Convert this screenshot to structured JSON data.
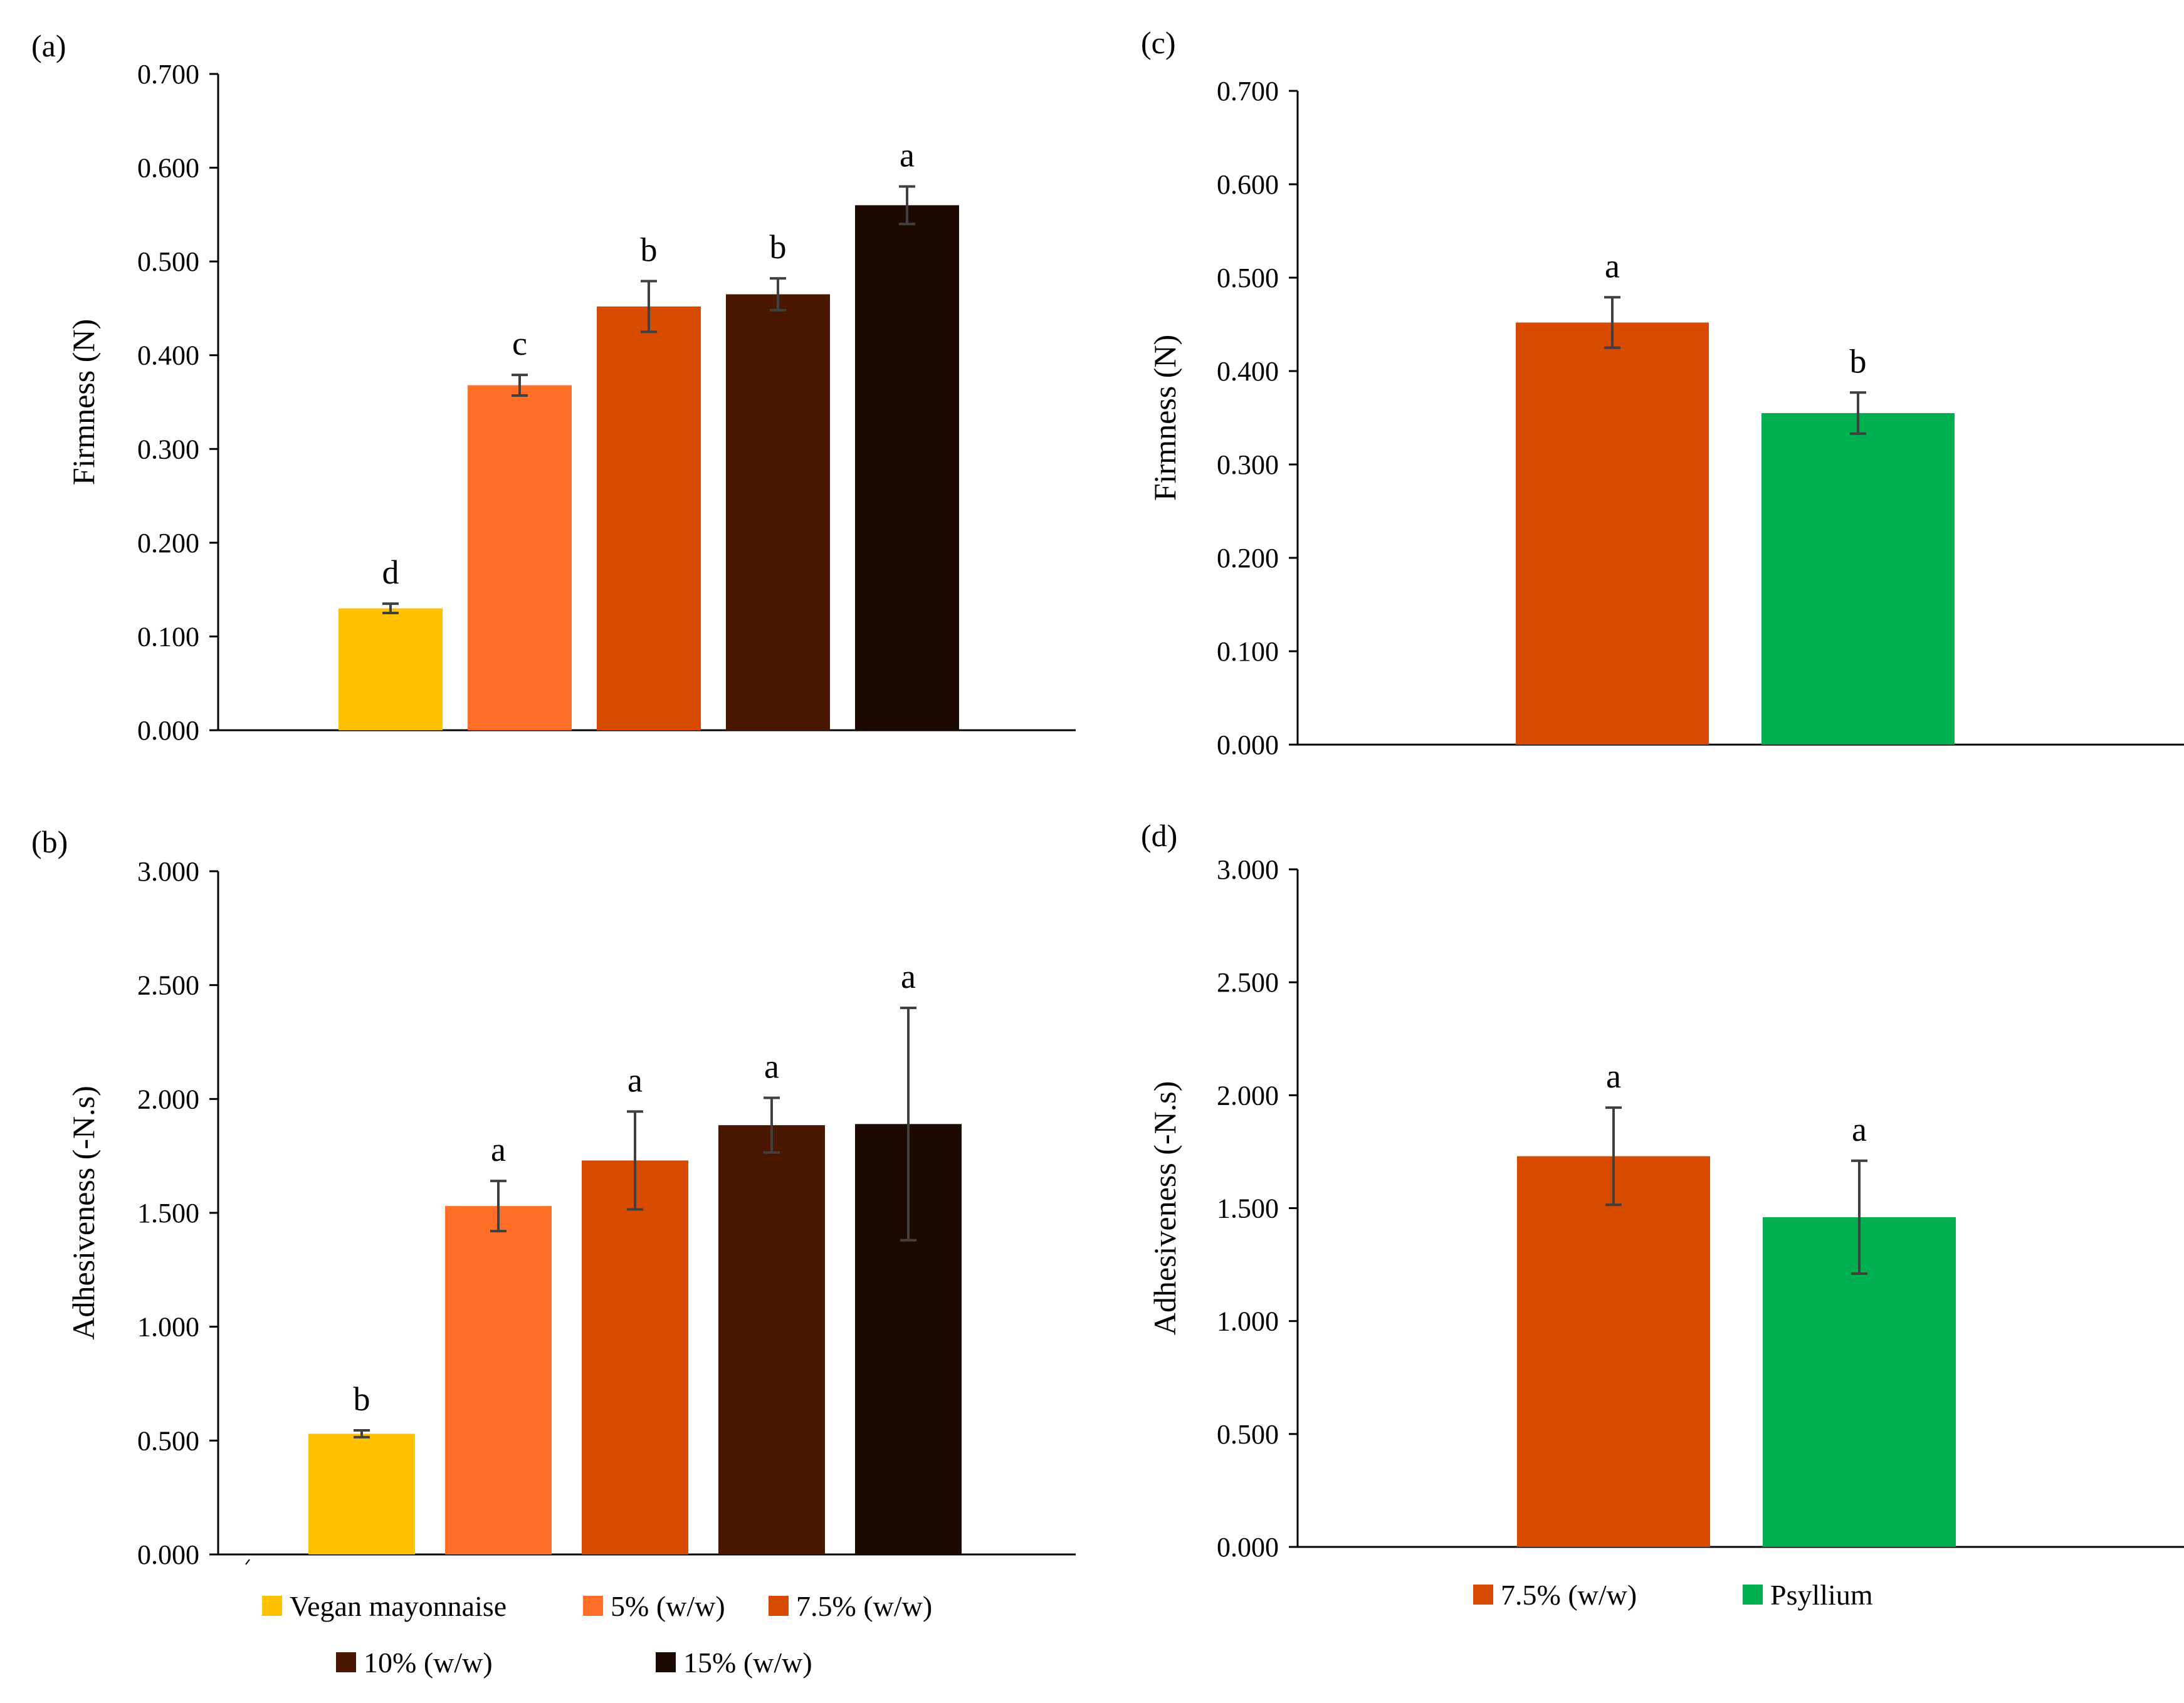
{
  "figure": {
    "legends": [
      {
        "name": "legend-left",
        "rows": [
          [
            {
              "label": "Vegan mayonnaise",
              "color": "#FFC000"
            },
            {
              "label": "5% (w/w)",
              "color": "#FF6F28"
            },
            {
              "label": "7.5% (w/w)",
              "color": "#D84A00"
            }
          ],
          [
            {
              "label": "10% (w/w)",
              "color": "#4A1700"
            },
            {
              "label": "15% (w/w)",
              "color": "#1C0A00"
            }
          ]
        ]
      },
      {
        "name": "legend-right",
        "rows": [
          [
            {
              "label": "7.5% (w/w)",
              "color": "#D84A00"
            },
            {
              "label": "Psyllium",
              "color": "#00B050"
            }
          ]
        ]
      }
    ]
  },
  "chart_data": [
    {
      "panel": "(a)",
      "type": "bar",
      "ylabel": "Firmness (N)",
      "xlabel": "",
      "ylim": [
        0,
        0.7
      ],
      "yticks": [
        "0.000",
        "0.100",
        "0.200",
        "0.300",
        "0.400",
        "0.500",
        "0.600",
        "0.700"
      ],
      "grid": false,
      "legend": "bottom",
      "categories": [
        "Vegan mayonnaise",
        "5% (w/w)",
        "7.5% (w/w)",
        "10% (w/w)",
        "15% (w/w)"
      ],
      "values": [
        0.13,
        0.368,
        0.452,
        0.465,
        0.56
      ],
      "errors": [
        0.005,
        0.011,
        0.027,
        0.017,
        0.02
      ],
      "labels": [
        "d",
        "c",
        "b",
        "b",
        "a"
      ],
      "colors": [
        "#FFC000",
        "#FF6F28",
        "#D84A00",
        "#4A1700",
        "#1C0A00"
      ]
    },
    {
      "panel": "(b)",
      "type": "bar",
      "ylabel": "Adhesiveness (-N.s)",
      "xlabel": "",
      "ylim": [
        0,
        3
      ],
      "yticks": [
        "0.000",
        "0.500",
        "1.000",
        "1.500",
        "2.000",
        "2.500",
        "3.000"
      ],
      "grid": false,
      "legend": "bottom",
      "categories": [
        "Vegan mayonnaise",
        "5% (w/w)",
        "7.5% (w/w)",
        "10% (w/w)",
        "15% (w/w)"
      ],
      "values": [
        0.53,
        1.53,
        1.73,
        1.885,
        1.89
      ],
      "errors": [
        0.015,
        0.11,
        0.215,
        0.12,
        0.51
      ],
      "labels": [
        "b",
        "a",
        "a",
        "a",
        "a"
      ],
      "colors": [
        "#FFC000",
        "#FF6F28",
        "#D84A00",
        "#4A1700",
        "#1C0A00"
      ]
    },
    {
      "panel": "(c)",
      "type": "bar",
      "ylabel": "Firmness (N)",
      "xlabel": "",
      "ylim": [
        0,
        0.7
      ],
      "yticks": [
        "0.000",
        "0.100",
        "0.200",
        "0.300",
        "0.400",
        "0.500",
        "0.600",
        "0.700"
      ],
      "grid": false,
      "legend": "bottom",
      "categories": [
        "7.5% (w/w)",
        "Psyllium"
      ],
      "values": [
        0.452,
        0.355
      ],
      "errors": [
        0.027,
        0.022
      ],
      "labels": [
        "a",
        "b"
      ],
      "colors": [
        "#D84A00",
        "#00B050"
      ]
    },
    {
      "panel": "(d)",
      "type": "bar",
      "ylabel": "Adhesiveness (-N.s)",
      "xlabel": "",
      "ylim": [
        0,
        3
      ],
      "yticks": [
        "0.000",
        "0.500",
        "1.000",
        "1.500",
        "2.000",
        "2.500",
        "3.000"
      ],
      "grid": false,
      "legend": "bottom",
      "categories": [
        "7.5% (w/w)",
        "Psyllium"
      ],
      "values": [
        1.73,
        1.46
      ],
      "errors": [
        0.215,
        0.25
      ],
      "labels": [
        "a",
        "a"
      ],
      "colors": [
        "#D84A00",
        "#00B050"
      ]
    }
  ]
}
